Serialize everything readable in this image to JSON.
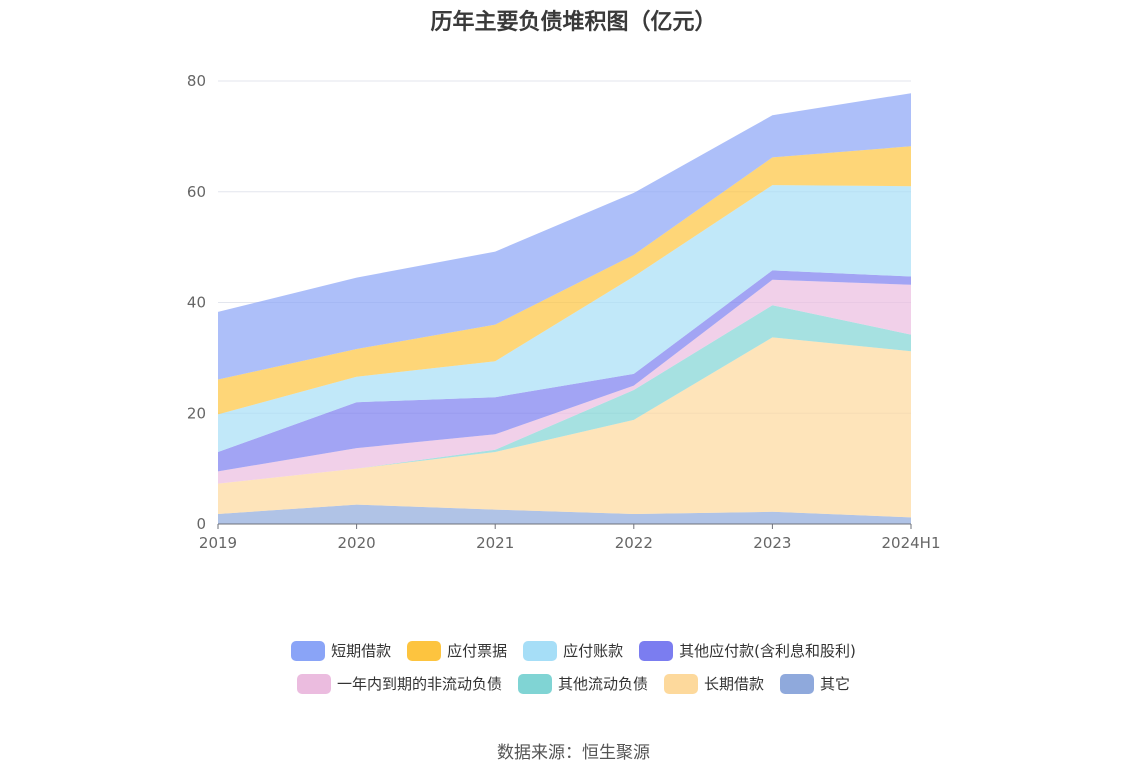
{
  "chart_data": {
    "type": "area",
    "stacked": true,
    "title": "历年主要负债堆积图（亿元）",
    "categories": [
      "2019",
      "2020",
      "2021",
      "2022",
      "2023",
      "2024H1"
    ],
    "ylim": [
      0,
      80
    ],
    "yticks": [
      "0",
      "20",
      "40",
      "60",
      "80"
    ],
    "series": [
      {
        "name": "其它",
        "color": "#8fa9dc",
        "values": [
          1.8,
          3.5,
          2.6,
          1.8,
          2.2,
          1.2
        ]
      },
      {
        "name": "长期借款",
        "color": "#fdd99c",
        "values": [
          5.5,
          6.5,
          10.4,
          17.0,
          31.5,
          30.0
        ]
      },
      {
        "name": "其他流动负债",
        "color": "#80d4d4",
        "values": [
          0,
          0,
          0.4,
          5.4,
          5.8,
          3.0
        ]
      },
      {
        "name": "一年内到期的非流动负债",
        "color": "#ebbcdf",
        "values": [
          2.2,
          3.7,
          2.8,
          0.8,
          4.6,
          9.0
        ]
      },
      {
        "name": "其他应付款(含利息和股利)",
        "color": "#7b7df0",
        "values": [
          3.5,
          8.3,
          6.7,
          2.1,
          1.7,
          1.5
        ]
      },
      {
        "name": "应付账款",
        "color": "#a6def7",
        "values": [
          6.8,
          4.6,
          6.5,
          17.6,
          15.4,
          16.3
        ]
      },
      {
        "name": "应付票据",
        "color": "#fdc43f",
        "values": [
          6.3,
          5.0,
          6.6,
          3.9,
          5.0,
          7.2
        ]
      },
      {
        "name": "短期借款",
        "color": "#8aa4f7",
        "values": [
          12.2,
          12.9,
          13.2,
          11.2,
          7.6,
          9.6
        ]
      }
    ]
  },
  "legend": {
    "row1": [
      {
        "label": "短期借款",
        "color": "#8aa4f7"
      },
      {
        "label": "应付票据",
        "color": "#fdc43f"
      },
      {
        "label": "应付账款",
        "color": "#a6def7"
      },
      {
        "label": "其他应付款(含利息和股利)",
        "color": "#7b7df0"
      }
    ],
    "row2": [
      {
        "label": "一年内到期的非流动负债",
        "color": "#ebbcdf"
      },
      {
        "label": "其他流动负债",
        "color": "#80d4d4"
      },
      {
        "label": "长期借款",
        "color": "#fdd99c"
      },
      {
        "label": "其它",
        "color": "#8fa9dc"
      }
    ]
  },
  "source": "数据来源：恒生聚源"
}
